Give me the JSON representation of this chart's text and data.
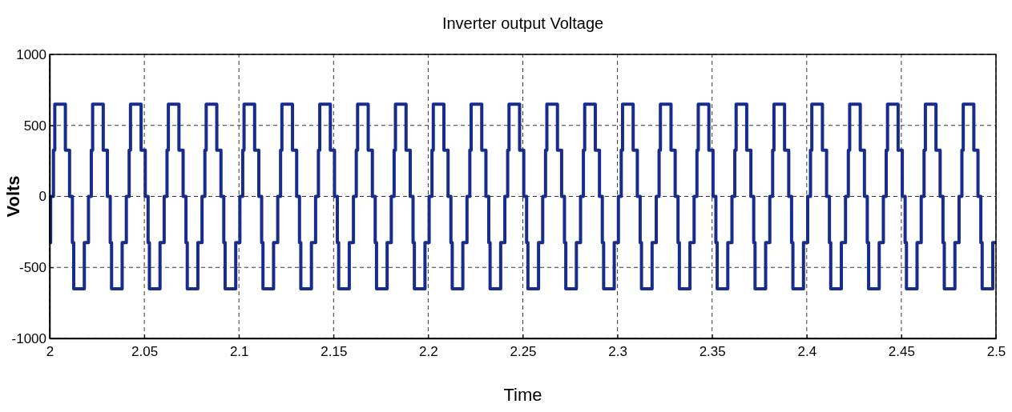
{
  "chart_data": {
    "type": "step",
    "title": "Inverter output Voltage",
    "xlabel": "Time",
    "ylabel": "Volts",
    "xlim": [
      2,
      2.5
    ],
    "xticks": [
      2,
      2.05,
      2.1,
      2.15,
      2.2,
      2.25,
      2.3,
      2.35,
      2.4,
      2.45,
      2.5
    ],
    "ylim": [
      -1000,
      1000
    ],
    "yticks": [
      -1000,
      -500,
      0,
      500,
      1000
    ],
    "grid": true,
    "marker": "none",
    "line_style": "solid",
    "x": [
      2,
      2.0005,
      2.002,
      2.0027,
      2.0083,
      2.0105,
      2.012,
      2.0127,
      2.0183,
      2.0205,
      2.022,
      2.0227,
      2.0283,
      2.0305,
      2.032,
      2.0327,
      2.0383,
      2.0405,
      2.042,
      2.0427,
      2.0483,
      2.0505,
      2.052,
      2.0527,
      2.0583,
      2.0605,
      2.062,
      2.0627,
      2.0683,
      2.0705,
      2.072,
      2.0727,
      2.0783,
      2.0805,
      2.082,
      2.0827,
      2.0883,
      2.0905,
      2.092,
      2.0927,
      2.0983,
      2.1005,
      2.102,
      2.1027,
      2.1083,
      2.1105,
      2.112,
      2.1127,
      2.1183,
      2.1205,
      2.122,
      2.1227,
      2.1283,
      2.1305,
      2.132,
      2.1327,
      2.1383,
      2.1405,
      2.142,
      2.1427,
      2.1483,
      2.1505,
      2.152,
      2.1527,
      2.1583,
      2.1605,
      2.162,
      2.1627,
      2.1683,
      2.1705,
      2.172,
      2.1727,
      2.1783,
      2.1805,
      2.182,
      2.1827,
      2.1883,
      2.1905,
      2.192,
      2.1927,
      2.1983,
      2.2005,
      2.202,
      2.2027,
      2.2083,
      2.2105,
      2.212,
      2.2127,
      2.2183,
      2.2205,
      2.222,
      2.2227,
      2.2283,
      2.2305,
      2.232,
      2.2327,
      2.2383,
      2.2405,
      2.242,
      2.2427,
      2.2483,
      2.2505,
      2.252,
      2.2527,
      2.2583,
      2.2605,
      2.262,
      2.2627,
      2.2683,
      2.2705,
      2.272,
      2.2727,
      2.2783,
      2.2805,
      2.282,
      2.2827,
      2.2883,
      2.2905,
      2.292,
      2.2927,
      2.2983,
      2.3005,
      2.302,
      2.3027,
      2.3083,
      2.3105,
      2.312,
      2.3127,
      2.3183,
      2.3205,
      2.322,
      2.3227,
      2.3283,
      2.3305,
      2.332,
      2.3327,
      2.3383,
      2.3405,
      2.342,
      2.3427,
      2.3483,
      2.3505,
      2.352,
      2.3527,
      2.3583,
      2.3605,
      2.362,
      2.3627,
      2.3683,
      2.3705,
      2.372,
      2.3727,
      2.3783,
      2.3805,
      2.382,
      2.3827,
      2.3883,
      2.3905,
      2.392,
      2.3927,
      2.3983,
      2.4005,
      2.402,
      2.4027,
      2.4083,
      2.4105,
      2.412,
      2.4127,
      2.4183,
      2.4205,
      2.422,
      2.4227,
      2.4283,
      2.4305,
      2.432,
      2.4327,
      2.4383,
      2.4405,
      2.442,
      2.4427,
      2.4483,
      2.4505,
      2.452,
      2.4527,
      2.4583,
      2.4605,
      2.462,
      2.4627,
      2.4683,
      2.4705,
      2.472,
      2.4727,
      2.4783,
      2.4805,
      2.482,
      2.4827,
      2.4883,
      2.4905,
      2.492,
      2.4927,
      2.4983,
      2.5
    ],
    "series": [
      {
        "color": "#182c8c",
        "values": [
          -325,
          0,
          325,
          650,
          325,
          0,
          -325,
          -650,
          -325,
          0,
          325,
          650,
          325,
          0,
          -325,
          -650,
          -325,
          0,
          325,
          650,
          325,
          0,
          -325,
          -650,
          -325,
          0,
          325,
          650,
          325,
          0,
          -325,
          -650,
          -325,
          0,
          325,
          650,
          325,
          0,
          -325,
          -650,
          -325,
          0,
          325,
          650,
          325,
          0,
          -325,
          -650,
          -325,
          0,
          325,
          650,
          325,
          0,
          -325,
          -650,
          -325,
          0,
          325,
          650,
          325,
          0,
          -325,
          -650,
          -325,
          0,
          325,
          650,
          325,
          0,
          -325,
          -650,
          -325,
          0,
          325,
          650,
          325,
          0,
          -325,
          -650,
          -325,
          0,
          325,
          650,
          325,
          0,
          -325,
          -650,
          -325,
          0,
          325,
          650,
          325,
          0,
          -325,
          -650,
          -325,
          0,
          325,
          650,
          325,
          0,
          -325,
          -650,
          -325,
          0,
          325,
          650,
          325,
          0,
          -325,
          -650,
          -325,
          0,
          325,
          650,
          325,
          0,
          -325,
          -650,
          -325,
          0,
          325,
          650,
          325,
          0,
          -325,
          -650,
          -325,
          0,
          325,
          650,
          325,
          0,
          -325,
          -650,
          -325,
          0,
          325,
          650,
          325,
          0,
          -325,
          -650,
          -325,
          0,
          325,
          650,
          325,
          0,
          -325,
          -650,
          -325,
          0,
          325,
          650,
          325,
          0,
          -325,
          -650,
          -325,
          0,
          325,
          650,
          325,
          0,
          -325,
          -650,
          -325,
          0,
          325,
          650,
          325,
          0,
          -325,
          -650,
          -325,
          0,
          325,
          650,
          325,
          0,
          -325,
          -650,
          -325,
          0,
          325,
          650,
          325,
          0,
          -325,
          -650,
          -325,
          0,
          325,
          650,
          325,
          0,
          -325,
          -650,
          -325,
          -325
        ]
      }
    ]
  }
}
